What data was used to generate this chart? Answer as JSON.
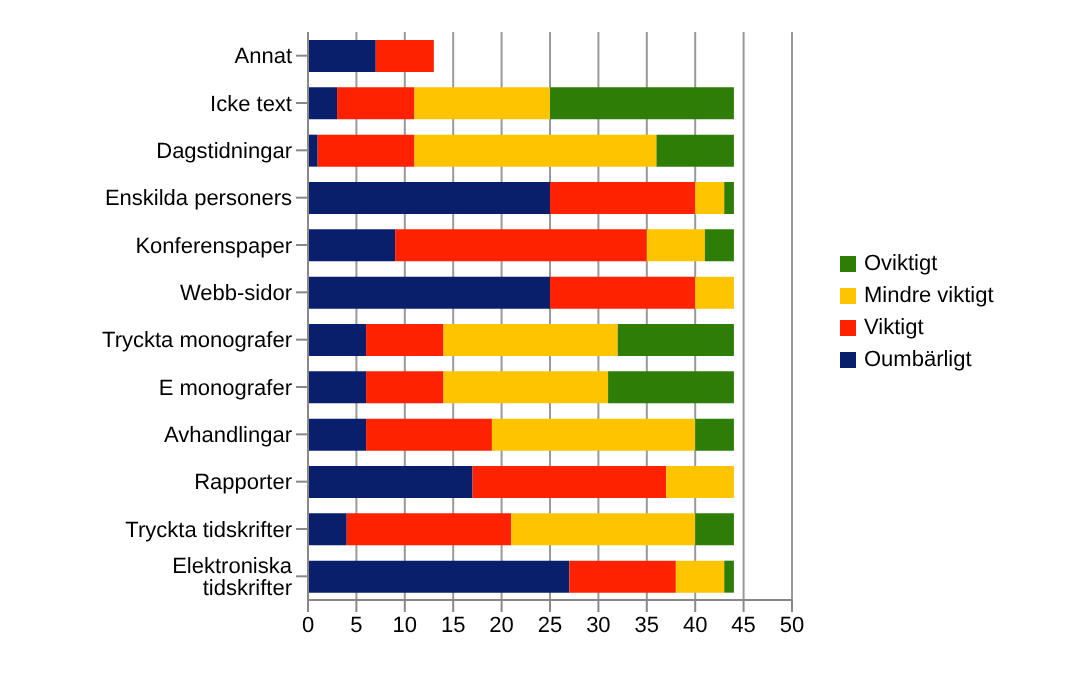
{
  "chart_data": {
    "type": "bar",
    "orientation": "horizontal",
    "stacked": true,
    "categories": [
      "Annat",
      "Icke text",
      "Dagstidningar",
      "Enskilda personers",
      "Konferenspaper",
      "Webb-sidor",
      "Tryckta monografer",
      "E monografer",
      "Avhandlingar",
      "Rapporter",
      "Tryckta tidskrifter",
      "Elektroniska tidskrifter"
    ],
    "series": [
      {
        "name": "Oumbärligt",
        "color": "#0a1f6b",
        "values": [
          7,
          3,
          1,
          25,
          9,
          25,
          6,
          6,
          6,
          17,
          4,
          27
        ]
      },
      {
        "name": "Viktigt",
        "color": "#ff2200",
        "values": [
          6,
          8,
          10,
          15,
          26,
          15,
          8,
          8,
          13,
          20,
          17,
          11
        ]
      },
      {
        "name": "Mindre viktigt",
        "color": "#ffc400",
        "values": [
          0,
          14,
          25,
          3,
          6,
          4,
          18,
          17,
          21,
          7,
          19,
          5
        ]
      },
      {
        "name": "Oviktigt",
        "color": "#2e7d06",
        "values": [
          0,
          19,
          8,
          1,
          3,
          0,
          12,
          13,
          4,
          0,
          4,
          1
        ]
      }
    ],
    "xlim": [
      0,
      50
    ],
    "xticks": [
      0,
      5,
      10,
      15,
      20,
      25,
      30,
      35,
      40,
      45,
      50
    ],
    "grid": "x",
    "legend": "right"
  }
}
